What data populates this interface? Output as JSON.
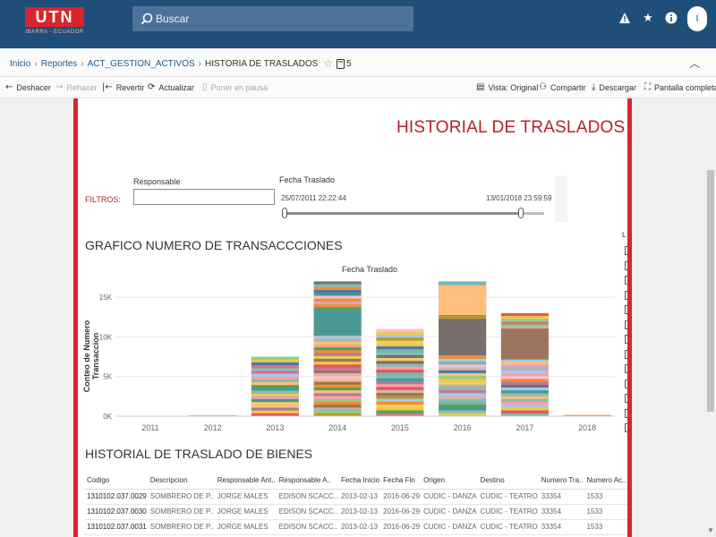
{
  "app": {
    "logo_text": "UTN",
    "logo_subtitle": "IBARRA - ECUADOR",
    "search_placeholder": "Buscar",
    "user_initial": "I"
  },
  "breadcrumb": {
    "items": [
      "Inicio",
      "Reportes",
      "ACT_GESTION_ACTIVOS"
    ],
    "current": "HISTORIA DE TRASLADOS",
    "views": "5"
  },
  "toolbar": {
    "undo": "Deshacer",
    "redo": "Rehacer",
    "revert": "Revertir",
    "refresh": "Actualizar",
    "pause": "Poner en pausa",
    "view": "Vista: Original",
    "share": "Compartir",
    "download": "Descargar",
    "fullscreen": "Pantalla completa"
  },
  "dashboard": {
    "title": "HISTORIAL DE TRASLADOS",
    "filters_label": "FILTROS:",
    "responsable_label": "Responsable",
    "responsable_value": "",
    "fecha_label": "Fecha Traslado",
    "fecha_start": "25/07/2011 22:22:44",
    "fecha_end": "13/01/2018 23:59:59",
    "range_fraction": [
      0.0,
      0.91
    ],
    "chart_section_title": "GRAFICO NUMERO DE TRANSACCCIONES",
    "legend_title": "L",
    "table_section_title": "HISTORIAL DE TRASLADO DE BIENES"
  },
  "chart_data": {
    "type": "bar",
    "stacked": true,
    "title": "Fecha Traslado",
    "xlabel": "",
    "ylabel": "Conteo de Numero Transaccion",
    "categories": [
      "2011",
      "2012",
      "2013",
      "2014",
      "2015",
      "2016",
      "2017",
      "2018"
    ],
    "values": [
      0,
      100,
      7500,
      17000,
      11000,
      17000,
      13000,
      150
    ],
    "yticks": [
      "0K",
      "5K",
      "10K",
      "15K"
    ],
    "ylim": [
      0,
      17500
    ],
    "grid": true,
    "palette": [
      "#4e79a7",
      "#f28e2b",
      "#e15759",
      "#76b7b2",
      "#59a14f",
      "#edc948",
      "#b07aa1",
      "#ff9da7",
      "#9c755f",
      "#bab0ac",
      "#a0cbe8",
      "#ffbe7d",
      "#8cd17d",
      "#b6992d",
      "#f1ce63",
      "#499894",
      "#86bcb6",
      "#d37295",
      "#fabfd2",
      "#79706e",
      "#d4a6c8",
      "#d7b5a6"
    ],
    "dominant_segments": {
      "2014": {
        "color": "#499894",
        "from": 0.6,
        "to": 0.8
      },
      "2016": {
        "color": "#ffbe7d",
        "from": 0.75,
        "to": 0.97
      },
      "2016b": {
        "color": "#79706e",
        "from": 0.45,
        "to": 0.72
      },
      "2017": {
        "color": "#9c755f",
        "from": 0.55,
        "to": 0.85
      }
    }
  },
  "table": {
    "columns": [
      "Codigo",
      "Descripcion",
      "Responsable Ant..",
      "Responsable A..",
      "Fecha Inicio",
      "Fecha Fin",
      "Origen",
      "Destino",
      "Numero Tra..",
      "Numero Ac.."
    ],
    "rows": [
      [
        "1310102.037.0029",
        "SOMBRERO DE P..",
        "JORGE MALES",
        "EDISON SCACC..",
        "2013-02-13",
        "2016-06-29",
        "CUDIC - DANZA",
        "CUDIC - TEATRO",
        "33354",
        "1533"
      ],
      [
        "1310102.037.0030",
        "SOMBRERO DE P..",
        "JORGE MALES",
        "EDISON SCACC..",
        "2013-02-13",
        "2016-06-29",
        "CUDIC - DANZA",
        "CUDIC - TEATRO",
        "33354",
        "1533"
      ],
      [
        "1310102.037.0031",
        "SOMBRERO DE P..",
        "JORGE MALES",
        "EDISON SCACC..",
        "2013-02-13",
        "2016-06-29",
        "CUDIC - DANZA",
        "CUDIC - TEATRO",
        "33354",
        "1533"
      ]
    ]
  }
}
